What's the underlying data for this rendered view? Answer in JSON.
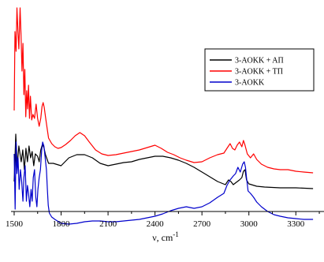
{
  "chart_data": {
    "type": "line",
    "title": "",
    "xlabel": "ν, cm",
    "xlabel_superscript": "-1",
    "ylabel": "",
    "xlim": [
      1480,
      3480
    ],
    "x_ticks": [
      1500,
      1800,
      2100,
      2400,
      2700,
      3000,
      3300
    ],
    "y_ticks_shown": false,
    "grid": false,
    "legend_position": "top-right",
    "legend": [
      "3-AOKK + AП",
      "3-AOKK + TП",
      "3-AOKK"
    ],
    "series": [
      {
        "name": "3-AOKK + AП",
        "color": "#000000",
        "points": [
          [
            1500,
            230
          ],
          [
            1510,
            170
          ],
          [
            1520,
            210
          ],
          [
            1530,
            185
          ],
          [
            1545,
            205
          ],
          [
            1555,
            190
          ],
          [
            1565,
            215
          ],
          [
            1575,
            188
          ],
          [
            1585,
            205
          ],
          [
            1595,
            185
          ],
          [
            1605,
            200
          ],
          [
            1615,
            192
          ],
          [
            1625,
            210
          ],
          [
            1635,
            195
          ],
          [
            1650,
            198
          ],
          [
            1660,
            205
          ],
          [
            1670,
            190
          ],
          [
            1680,
            183
          ],
          [
            1690,
            187
          ],
          [
            1700,
            196
          ],
          [
            1720,
            207
          ],
          [
            1750,
            207
          ],
          [
            1800,
            210
          ],
          [
            1850,
            200
          ],
          [
            1900,
            196
          ],
          [
            1950,
            196
          ],
          [
            2000,
            200
          ],
          [
            2050,
            207
          ],
          [
            2100,
            210
          ],
          [
            2150,
            208
          ],
          [
            2200,
            206
          ],
          [
            2250,
            205
          ],
          [
            2300,
            202
          ],
          [
            2350,
            200
          ],
          [
            2400,
            198
          ],
          [
            2450,
            198
          ],
          [
            2500,
            200
          ],
          [
            2550,
            203
          ],
          [
            2600,
            207
          ],
          [
            2650,
            212
          ],
          [
            2700,
            218
          ],
          [
            2750,
            224
          ],
          [
            2800,
            230
          ],
          [
            2850,
            234
          ],
          [
            2870,
            228
          ],
          [
            2885,
            230
          ],
          [
            2900,
            234
          ],
          [
            2920,
            231
          ],
          [
            2940,
            228
          ],
          [
            2955,
            225
          ],
          [
            2965,
            217
          ],
          [
            2975,
            215
          ],
          [
            2985,
            228
          ],
          [
            3000,
            233
          ],
          [
            3050,
            236
          ],
          [
            3100,
            237
          ],
          [
            3200,
            238
          ],
          [
            3300,
            238
          ],
          [
            3410,
            239
          ]
        ]
      },
      {
        "name": "3-AOKK + TП",
        "color": "#ff0000",
        "points": [
          [
            1500,
            140
          ],
          [
            1505,
            40
          ],
          [
            1512,
            65
          ],
          [
            1518,
            10
          ],
          [
            1524,
            38
          ],
          [
            1530,
            62
          ],
          [
            1538,
            10
          ],
          [
            1544,
            45
          ],
          [
            1550,
            90
          ],
          [
            1556,
            55
          ],
          [
            1562,
            120
          ],
          [
            1568,
            88
          ],
          [
            1574,
            148
          ],
          [
            1580,
            115
          ],
          [
            1586,
            138
          ],
          [
            1592,
            108
          ],
          [
            1598,
            150
          ],
          [
            1604,
            122
          ],
          [
            1612,
            152
          ],
          [
            1620,
            145
          ],
          [
            1630,
            150
          ],
          [
            1640,
            132
          ],
          [
            1650,
            150
          ],
          [
            1660,
            160
          ],
          [
            1670,
            150
          ],
          [
            1678,
            135
          ],
          [
            1685,
            130
          ],
          [
            1692,
            136
          ],
          [
            1700,
            148
          ],
          [
            1710,
            162
          ],
          [
            1720,
            175
          ],
          [
            1740,
            182
          ],
          [
            1760,
            186
          ],
          [
            1780,
            188
          ],
          [
            1800,
            187
          ],
          [
            1830,
            183
          ],
          [
            1860,
            178
          ],
          [
            1890,
            172
          ],
          [
            1920,
            168
          ],
          [
            1950,
            172
          ],
          [
            1980,
            180
          ],
          [
            2020,
            190
          ],
          [
            2060,
            195
          ],
          [
            2100,
            197
          ],
          [
            2150,
            196
          ],
          [
            2200,
            194
          ],
          [
            2250,
            192
          ],
          [
            2300,
            190
          ],
          [
            2350,
            187
          ],
          [
            2400,
            184
          ],
          [
            2440,
            188
          ],
          [
            2480,
            193
          ],
          [
            2520,
            196
          ],
          [
            2560,
            200
          ],
          [
            2600,
            203
          ],
          [
            2650,
            206
          ],
          [
            2700,
            205
          ],
          [
            2750,
            200
          ],
          [
            2800,
            196
          ],
          [
            2840,
            194
          ],
          [
            2860,
            188
          ],
          [
            2880,
            182
          ],
          [
            2895,
            188
          ],
          [
            2910,
            190
          ],
          [
            2925,
            184
          ],
          [
            2940,
            180
          ],
          [
            2955,
            186
          ],
          [
            2965,
            178
          ],
          [
            2975,
            184
          ],
          [
            2990,
            195
          ],
          [
            3010,
            200
          ],
          [
            3030,
            195
          ],
          [
            3050,
            202
          ],
          [
            3080,
            208
          ],
          [
            3120,
            212
          ],
          [
            3160,
            214
          ],
          [
            3200,
            215
          ],
          [
            3250,
            215
          ],
          [
            3300,
            217
          ],
          [
            3350,
            218
          ],
          [
            3410,
            219
          ]
        ]
      },
      {
        "name": "3-AOKK",
        "color": "#0000cc",
        "points": [
          [
            1500,
            195
          ],
          [
            1506,
            265
          ],
          [
            1512,
            180
          ],
          [
            1518,
            220
          ],
          [
            1525,
            200
          ],
          [
            1532,
            240
          ],
          [
            1540,
            215
          ],
          [
            1548,
            230
          ],
          [
            1556,
            255
          ],
          [
            1562,
            225
          ],
          [
            1570,
            210
          ],
          [
            1578,
            255
          ],
          [
            1585,
            235
          ],
          [
            1592,
            245
          ],
          [
            1600,
            262
          ],
          [
            1608,
            240
          ],
          [
            1615,
            255
          ],
          [
            1622,
            225
          ],
          [
            1630,
            215
          ],
          [
            1638,
            250
          ],
          [
            1645,
            262
          ],
          [
            1652,
            240
          ],
          [
            1660,
            225
          ],
          [
            1668,
            215
          ],
          [
            1676,
            190
          ],
          [
            1682,
            180
          ],
          [
            1690,
            185
          ],
          [
            1698,
            200
          ],
          [
            1706,
            215
          ],
          [
            1712,
            240
          ],
          [
            1718,
            260
          ],
          [
            1725,
            270
          ],
          [
            1740,
            275
          ],
          [
            1760,
            278
          ],
          [
            1800,
            283
          ],
          [
            1850,
            284
          ],
          [
            1900,
            283
          ],
          [
            1950,
            281
          ],
          [
            2000,
            280
          ],
          [
            2050,
            280
          ],
          [
            2100,
            281
          ],
          [
            2150,
            281
          ],
          [
            2200,
            280
          ],
          [
            2250,
            279
          ],
          [
            2300,
            278
          ],
          [
            2350,
            276
          ],
          [
            2400,
            274
          ],
          [
            2450,
            271
          ],
          [
            2500,
            267
          ],
          [
            2550,
            264
          ],
          [
            2600,
            262
          ],
          [
            2650,
            264
          ],
          [
            2700,
            262
          ],
          [
            2750,
            257
          ],
          [
            2800,
            250
          ],
          [
            2840,
            245
          ],
          [
            2860,
            235
          ],
          [
            2880,
            228
          ],
          [
            2900,
            223
          ],
          [
            2915,
            220
          ],
          [
            2930,
            212
          ],
          [
            2945,
            218
          ],
          [
            2960,
            208
          ],
          [
            2970,
            205
          ],
          [
            2978,
            212
          ],
          [
            2985,
            225
          ],
          [
            2995,
            242
          ],
          [
            3010,
            245
          ],
          [
            3030,
            250
          ],
          [
            3050,
            256
          ],
          [
            3080,
            262
          ],
          [
            3120,
            268
          ],
          [
            3160,
            272
          ],
          [
            3200,
            274
          ],
          [
            3250,
            276
          ],
          [
            3300,
            277
          ],
          [
            3350,
            278
          ],
          [
            3410,
            278
          ]
        ]
      }
    ]
  }
}
